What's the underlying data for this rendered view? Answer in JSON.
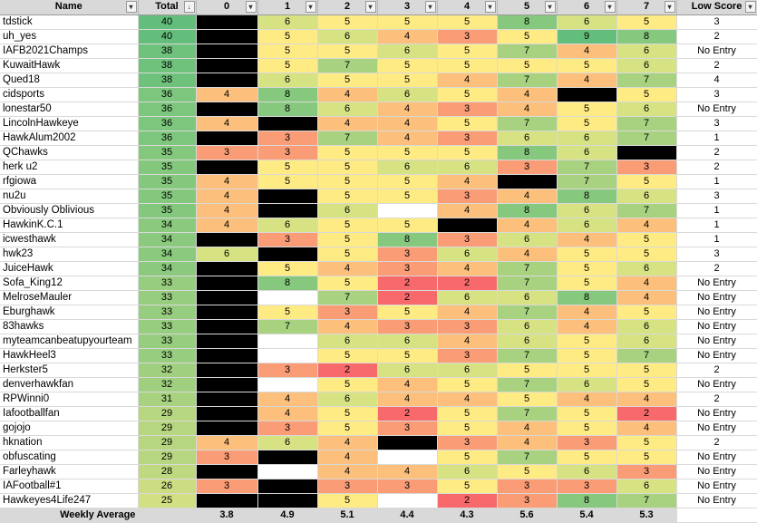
{
  "headers": {
    "name": "Name",
    "total": "Total",
    "weeks": [
      "0",
      "1",
      "2",
      "3",
      "4",
      "5",
      "6",
      "7"
    ],
    "low_score": "Low Score"
  },
  "colors": {
    "header_bg": "#d9d9d9",
    "blocked_cell": "#000000",
    "empty_cell": "#ffffff",
    "score_scale": {
      "2": "#f8696b",
      "3": "#fa9c76",
      "4": "#fcc07c",
      "5": "#ffeb84",
      "6": "#d7e283",
      "7": "#a8d27f",
      "8": "#86c87d",
      "9": "#63be7b"
    },
    "total_scale": {
      "40": "#63be7b",
      "38": "#6fc27c",
      "36": "#7dc67d",
      "35": "#84c87d",
      "34": "#8bca7e",
      "33": "#97cd7e",
      "32": "#a0d07f",
      "31": "#a8d27f",
      "29": "#b6d680",
      "28": "#bfd981",
      "26": "#cbdc82",
      "25": "#d2df82"
    }
  },
  "rows": [
    {
      "name": "tdstick",
      "total": "40",
      "weeks": [
        "X",
        "6",
        "5",
        "5",
        "5",
        "8",
        "6",
        "5"
      ],
      "low": "3"
    },
    {
      "name": "uh_yes",
      "total": "40",
      "weeks": [
        "X",
        "5",
        "6",
        "4",
        "3",
        "5",
        "9",
        "8"
      ],
      "low": "2"
    },
    {
      "name": "IAFB2021Champs",
      "total": "38",
      "weeks": [
        "X",
        "5",
        "5",
        "6",
        "5",
        "7",
        "4",
        "6"
      ],
      "low": "No Entry"
    },
    {
      "name": "KuwaitHawk",
      "total": "38",
      "weeks": [
        "X",
        "5",
        "7",
        "5",
        "5",
        "5",
        "5",
        "6"
      ],
      "low": "2"
    },
    {
      "name": "Qued18",
      "total": "38",
      "weeks": [
        "X",
        "6",
        "5",
        "5",
        "4",
        "7",
        "4",
        "7"
      ],
      "low": "4"
    },
    {
      "name": "cidsports",
      "total": "36",
      "weeks": [
        "4",
        "8",
        "4",
        "6",
        "5",
        "4",
        "X",
        "5"
      ],
      "low": "3"
    },
    {
      "name": "lonestar50",
      "total": "36",
      "weeks": [
        "X",
        "8",
        "6",
        "4",
        "3",
        "4",
        "5",
        "6"
      ],
      "low": "No Entry"
    },
    {
      "name": "LincolnHawkeye",
      "total": "36",
      "weeks": [
        "4",
        "X",
        "4",
        "4",
        "5",
        "7",
        "5",
        "7"
      ],
      "low": "3"
    },
    {
      "name": "HawkAlum2002",
      "total": "36",
      "weeks": [
        "X",
        "3",
        "7",
        "4",
        "3",
        "6",
        "6",
        "7"
      ],
      "low": "1"
    },
    {
      "name": "QChawks",
      "total": "35",
      "weeks": [
        "3",
        "3",
        "5",
        "5",
        "5",
        "8",
        "6",
        "X"
      ],
      "low": "2"
    },
    {
      "name": "herk u2",
      "total": "35",
      "weeks": [
        "X",
        "5",
        "5",
        "6",
        "6",
        "3",
        "7",
        "3"
      ],
      "low": "2"
    },
    {
      "name": "rfgiowa",
      "total": "35",
      "weeks": [
        "4",
        "5",
        "5",
        "5",
        "4",
        "X",
        "7",
        "5"
      ],
      "low": "1"
    },
    {
      "name": "nu2u",
      "total": "35",
      "weeks": [
        "4",
        "X",
        "5",
        "5",
        "3",
        "4",
        "8",
        "6"
      ],
      "low": "3"
    },
    {
      "name": "Obviously Oblivious",
      "total": "35",
      "weeks": [
        "4",
        "X",
        "6",
        "",
        "4",
        "8",
        "6",
        "7"
      ],
      "low": "1"
    },
    {
      "name": "HawkinK.C.1",
      "total": "34",
      "weeks": [
        "4",
        "6",
        "5",
        "5",
        "X",
        "4",
        "6",
        "4"
      ],
      "low": "1"
    },
    {
      "name": "icwesthawk",
      "total": "34",
      "weeks": [
        "X",
        "3",
        "5",
        "8",
        "3",
        "6",
        "4",
        "5"
      ],
      "low": "1"
    },
    {
      "name": "hwk23",
      "total": "34",
      "weeks": [
        "6",
        "X",
        "5",
        "3",
        "6",
        "4",
        "5",
        "5"
      ],
      "low": "3"
    },
    {
      "name": "JuiceHawk",
      "total": "34",
      "weeks": [
        "X",
        "5",
        "4",
        "3",
        "4",
        "7",
        "5",
        "6"
      ],
      "low": "2"
    },
    {
      "name": "Sofa_King12",
      "total": "33",
      "weeks": [
        "X",
        "8",
        "5",
        "2",
        "2",
        "7",
        "5",
        "4"
      ],
      "low": "No Entry"
    },
    {
      "name": "MelroseMauler",
      "total": "33",
      "weeks": [
        "X",
        "",
        "7",
        "2",
        "6",
        "6",
        "8",
        "4"
      ],
      "low": "No Entry"
    },
    {
      "name": "Eburghawk",
      "total": "33",
      "weeks": [
        "X",
        "5",
        "3",
        "5",
        "4",
        "7",
        "4",
        "5"
      ],
      "low": "No Entry"
    },
    {
      "name": "83hawks",
      "total": "33",
      "weeks": [
        "X",
        "7",
        "4",
        "3",
        "3",
        "6",
        "4",
        "6"
      ],
      "low": "No Entry"
    },
    {
      "name": "myteamcanbeatupyourteam",
      "total": "33",
      "weeks": [
        "X",
        "",
        "6",
        "6",
        "4",
        "6",
        "5",
        "6"
      ],
      "low": "No Entry"
    },
    {
      "name": "HawkHeel3",
      "total": "33",
      "weeks": [
        "X",
        "",
        "5",
        "5",
        "3",
        "7",
        "5",
        "7"
      ],
      "low": "No Entry"
    },
    {
      "name": "Herkster5",
      "total": "32",
      "weeks": [
        "X",
        "3",
        "2",
        "6",
        "6",
        "5",
        "5",
        "5"
      ],
      "low": "2"
    },
    {
      "name": "denverhawkfan",
      "total": "32",
      "weeks": [
        "X",
        "",
        "5",
        "4",
        "5",
        "7",
        "6",
        "5"
      ],
      "low": "No Entry"
    },
    {
      "name": "RPWinni0",
      "total": "31",
      "weeks": [
        "X",
        "4",
        "6",
        "4",
        "4",
        "5",
        "4",
        "4"
      ],
      "low": "2"
    },
    {
      "name": "Iafootballfan",
      "total": "29",
      "weeks": [
        "X",
        "4",
        "5",
        "2",
        "5",
        "7",
        "5",
        "2"
      ],
      "low": "No Entry"
    },
    {
      "name": "gojojo",
      "total": "29",
      "weeks": [
        "X",
        "3",
        "5",
        "3",
        "5",
        "4",
        "5",
        "4"
      ],
      "low": "No Entry"
    },
    {
      "name": "hknation",
      "total": "29",
      "weeks": [
        "4",
        "6",
        "4",
        "X",
        "3",
        "4",
        "3",
        "5"
      ],
      "low": "2"
    },
    {
      "name": "obfuscating",
      "total": "29",
      "weeks": [
        "3",
        "X",
        "4",
        "",
        "5",
        "7",
        "5",
        "5"
      ],
      "low": "No Entry"
    },
    {
      "name": "Farleyhawk",
      "total": "28",
      "weeks": [
        "X",
        "",
        "4",
        "4",
        "6",
        "5",
        "6",
        "3"
      ],
      "low": "No Entry"
    },
    {
      "name": "IAFootball#1",
      "total": "26",
      "weeks": [
        "3",
        "X",
        "3",
        "3",
        "5",
        "3",
        "3",
        "6"
      ],
      "low": "No Entry"
    },
    {
      "name": "Hawkeyes4Life247",
      "total": "25",
      "weeks": [
        "X",
        "X",
        "5",
        "",
        "2",
        "3",
        "8",
        "7"
      ],
      "low": "No Entry"
    }
  ],
  "footer": {
    "label": "Weekly Average",
    "averages": [
      "3.8",
      "4.9",
      "5.1",
      "4.4",
      "4.3",
      "5.6",
      "5.4",
      "5.3"
    ]
  }
}
